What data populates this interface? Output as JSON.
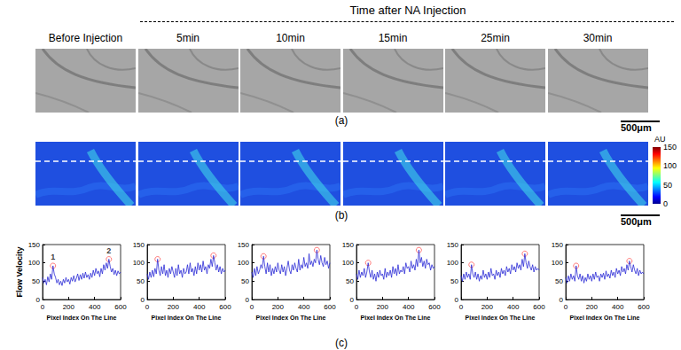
{
  "header": {
    "title": "Time after NA Injection",
    "columns": [
      "Before Injection",
      "5min",
      "10min",
      "15min",
      "25min",
      "30min"
    ]
  },
  "panel_labels": [
    "(a)",
    "(b)",
    "(c)"
  ],
  "scale_bar": "500μm",
  "colorbar": {
    "label": "AU",
    "range": [
      0,
      150
    ],
    "ticks": [
      0,
      50,
      100,
      150
    ]
  },
  "chart_data": [
    {
      "type": "line",
      "color": "#2b2bd6",
      "grid": false,
      "marker": "circle",
      "x_label": "Pixel Index On The Line",
      "y_label": "Flow Velocity",
      "xlim": [
        0,
        600
      ],
      "xticks": [
        0,
        200,
        400,
        600
      ],
      "ylim": [
        0,
        150
      ],
      "yticks": [
        0,
        50,
        100,
        150
      ],
      "x": [
        0,
        10,
        20,
        30,
        40,
        50,
        60,
        70,
        80,
        90,
        100,
        110,
        120,
        130,
        140,
        150,
        160,
        170,
        180,
        190,
        200,
        210,
        220,
        230,
        240,
        250,
        260,
        270,
        280,
        290,
        300,
        310,
        320,
        330,
        340,
        350,
        360,
        370,
        380,
        390,
        400,
        410,
        420,
        430,
        440,
        450,
        460,
        470,
        480,
        490,
        500,
        510,
        520,
        530,
        540,
        550,
        560,
        570,
        580,
        590,
        600
      ],
      "values": [
        60,
        45,
        55,
        40,
        62,
        48,
        70,
        55,
        92,
        70,
        60,
        45,
        55,
        40,
        50,
        38,
        55,
        45,
        60,
        48,
        55,
        42,
        60,
        50,
        65,
        48,
        58,
        70,
        52,
        68,
        55,
        72,
        58,
        75,
        60,
        68,
        55,
        72,
        60,
        80,
        65,
        85,
        70,
        78,
        62,
        85,
        70,
        95,
        80,
        100,
        85,
        110,
        90,
        75,
        85,
        68,
        80,
        65,
        78,
        70,
        75
      ],
      "peaks": [
        {
          "x": 80,
          "y": 92,
          "label": "1"
        },
        {
          "x": 510,
          "y": 110,
          "label": "2"
        }
      ]
    },
    {
      "type": "line",
      "color": "#2b2bd6",
      "grid": false,
      "marker": "circle",
      "x_label": "Pixel Index On The Line",
      "xlim": [
        0,
        600
      ],
      "xticks": [
        0,
        200,
        400,
        600
      ],
      "ylim": [
        0,
        150
      ],
      "yticks": [
        0,
        50,
        100,
        150
      ],
      "x": [
        0,
        10,
        20,
        30,
        40,
        50,
        60,
        70,
        80,
        90,
        100,
        110,
        120,
        130,
        140,
        150,
        160,
        170,
        180,
        190,
        200,
        210,
        220,
        230,
        240,
        250,
        260,
        270,
        280,
        290,
        300,
        310,
        320,
        330,
        340,
        350,
        360,
        370,
        380,
        390,
        400,
        410,
        420,
        430,
        440,
        450,
        460,
        470,
        480,
        490,
        500,
        510,
        520,
        530,
        540,
        550,
        560,
        570,
        580,
        590,
        600
      ],
      "values": [
        70,
        55,
        75,
        60,
        80,
        62,
        85,
        70,
        110,
        80,
        65,
        90,
        70,
        95,
        65,
        80,
        60,
        85,
        70,
        90,
        75,
        60,
        85,
        65,
        95,
        70,
        80,
        60,
        85,
        70,
        75,
        95,
        70,
        100,
        75,
        85,
        65,
        90,
        70,
        100,
        80,
        95,
        75,
        105,
        80,
        90,
        70,
        95,
        85,
        110,
        90,
        120,
        100,
        80,
        95,
        75,
        90,
        70,
        85,
        75,
        80
      ],
      "peaks": [
        {
          "x": 80,
          "y": 110
        },
        {
          "x": 510,
          "y": 120
        }
      ]
    },
    {
      "type": "line",
      "color": "#2b2bd6",
      "grid": false,
      "marker": "circle",
      "x_label": "Pixel Index On The Line",
      "xlim": [
        0,
        600
      ],
      "xticks": [
        0,
        200,
        400,
        600
      ],
      "ylim": [
        0,
        150
      ],
      "yticks": [
        0,
        50,
        100,
        150
      ],
      "x": [
        0,
        10,
        20,
        30,
        40,
        50,
        60,
        70,
        80,
        90,
        100,
        110,
        120,
        130,
        140,
        150,
        160,
        170,
        180,
        190,
        200,
        210,
        220,
        230,
        240,
        250,
        260,
        270,
        280,
        290,
        300,
        310,
        320,
        330,
        340,
        350,
        360,
        370,
        380,
        390,
        400,
        410,
        420,
        430,
        440,
        450,
        460,
        470,
        480,
        490,
        500,
        510,
        520,
        530,
        540,
        550,
        560,
        570,
        580,
        590,
        600
      ],
      "values": [
        75,
        60,
        85,
        65,
        90,
        70,
        80,
        95,
        85,
        118,
        90,
        70,
        100,
        75,
        95,
        65,
        85,
        70,
        90,
        75,
        100,
        80,
        70,
        95,
        75,
        90,
        65,
        85,
        105,
        80,
        70,
        95,
        80,
        100,
        85,
        75,
        110,
        80,
        95,
        85,
        115,
        90,
        100,
        85,
        125,
        95,
        105,
        90,
        110,
        100,
        135,
        110,
        95,
        120,
        100,
        90,
        115,
        95,
        105,
        85,
        100
      ],
      "peaks": [
        {
          "x": 90,
          "y": 118
        },
        {
          "x": 500,
          "y": 135
        }
      ]
    },
    {
      "type": "line",
      "color": "#2b2bd6",
      "grid": false,
      "marker": "circle",
      "x_label": "Pixel Index On The Line",
      "xlim": [
        0,
        600
      ],
      "xticks": [
        0,
        200,
        400,
        600
      ],
      "ylim": [
        0,
        150
      ],
      "yticks": [
        0,
        50,
        100,
        150
      ],
      "x": [
        0,
        10,
        20,
        30,
        40,
        50,
        60,
        70,
        80,
        90,
        100,
        110,
        120,
        130,
        140,
        150,
        160,
        170,
        180,
        190,
        200,
        210,
        220,
        230,
        240,
        250,
        260,
        270,
        280,
        290,
        300,
        310,
        320,
        330,
        340,
        350,
        360,
        370,
        380,
        390,
        400,
        410,
        420,
        430,
        440,
        450,
        460,
        470,
        480,
        490,
        500,
        510,
        520,
        530,
        540,
        550,
        560,
        570,
        580,
        590,
        600
      ],
      "values": [
        70,
        55,
        80,
        60,
        75,
        65,
        85,
        60,
        75,
        100,
        75,
        60,
        80,
        55,
        70,
        50,
        75,
        60,
        80,
        65,
        70,
        55,
        85,
        60,
        75,
        65,
        80,
        60,
        90,
        70,
        85,
        65,
        95,
        70,
        80,
        75,
        90,
        70,
        100,
        85,
        90,
        75,
        105,
        85,
        95,
        80,
        110,
        90,
        135,
        100,
        115,
        90,
        105,
        85,
        110,
        95,
        100,
        80,
        95,
        85,
        90
      ],
      "peaks": [
        {
          "x": 90,
          "y": 100
        },
        {
          "x": 480,
          "y": 135
        }
      ]
    },
    {
      "type": "line",
      "color": "#2b2bd6",
      "grid": false,
      "marker": "circle",
      "x_label": "Pixel Index On The Line",
      "xlim": [
        0,
        600
      ],
      "xticks": [
        0,
        200,
        400,
        600
      ],
      "ylim": [
        0,
        150
      ],
      "yticks": [
        0,
        50,
        100,
        150
      ],
      "x": [
        0,
        10,
        20,
        30,
        40,
        50,
        60,
        70,
        80,
        90,
        100,
        110,
        120,
        130,
        140,
        150,
        160,
        170,
        180,
        190,
        200,
        210,
        220,
        230,
        240,
        250,
        260,
        270,
        280,
        290,
        300,
        310,
        320,
        330,
        340,
        350,
        360,
        370,
        380,
        390,
        400,
        410,
        420,
        430,
        440,
        450,
        460,
        470,
        480,
        490,
        500,
        510,
        520,
        530,
        540,
        550,
        560,
        570,
        580,
        590,
        600
      ],
      "values": [
        65,
        50,
        70,
        55,
        75,
        60,
        70,
        55,
        95,
        70,
        60,
        75,
        55,
        70,
        50,
        65,
        55,
        80,
        60,
        70,
        55,
        75,
        60,
        85,
        65,
        70,
        55,
        80,
        65,
        75,
        60,
        85,
        70,
        80,
        65,
        90,
        75,
        85,
        70,
        95,
        80,
        90,
        75,
        100,
        85,
        95,
        80,
        110,
        90,
        125,
        100,
        85,
        105,
        90,
        80,
        95,
        75,
        90,
        80,
        85,
        80
      ],
      "peaks": [
        {
          "x": 80,
          "y": 95
        },
        {
          "x": 490,
          "y": 125
        }
      ]
    },
    {
      "type": "line",
      "color": "#2b2bd6",
      "grid": false,
      "marker": "circle",
      "x_label": "Pixel Index On The Line",
      "xlim": [
        0,
        600
      ],
      "xticks": [
        0,
        200,
        400,
        600
      ],
      "ylim": [
        0,
        150
      ],
      "yticks": [
        0,
        50,
        100,
        150
      ],
      "x": [
        0,
        10,
        20,
        30,
        40,
        50,
        60,
        70,
        80,
        90,
        100,
        110,
        120,
        130,
        140,
        150,
        160,
        170,
        180,
        190,
        200,
        210,
        220,
        230,
        240,
        250,
        260,
        270,
        280,
        290,
        300,
        310,
        320,
        330,
        340,
        350,
        360,
        370,
        380,
        390,
        400,
        410,
        420,
        430,
        440,
        450,
        460,
        470,
        480,
        490,
        500,
        510,
        520,
        530,
        540,
        550,
        560,
        570,
        580,
        590,
        600
      ],
      "values": [
        60,
        45,
        65,
        50,
        70,
        55,
        65,
        50,
        92,
        65,
        55,
        70,
        50,
        65,
        45,
        60,
        50,
        70,
        55,
        65,
        50,
        70,
        55,
        75,
        60,
        65,
        50,
        70,
        60,
        72,
        55,
        78,
        62,
        70,
        58,
        80,
        65,
        75,
        60,
        85,
        70,
        80,
        65,
        90,
        75,
        85,
        70,
        95,
        80,
        105,
        90,
        75,
        95,
        80,
        70,
        85,
        65,
        80,
        70,
        75,
        70
      ],
      "peaks": [
        {
          "x": 80,
          "y": 92
        },
        {
          "x": 490,
          "y": 105
        }
      ]
    }
  ]
}
